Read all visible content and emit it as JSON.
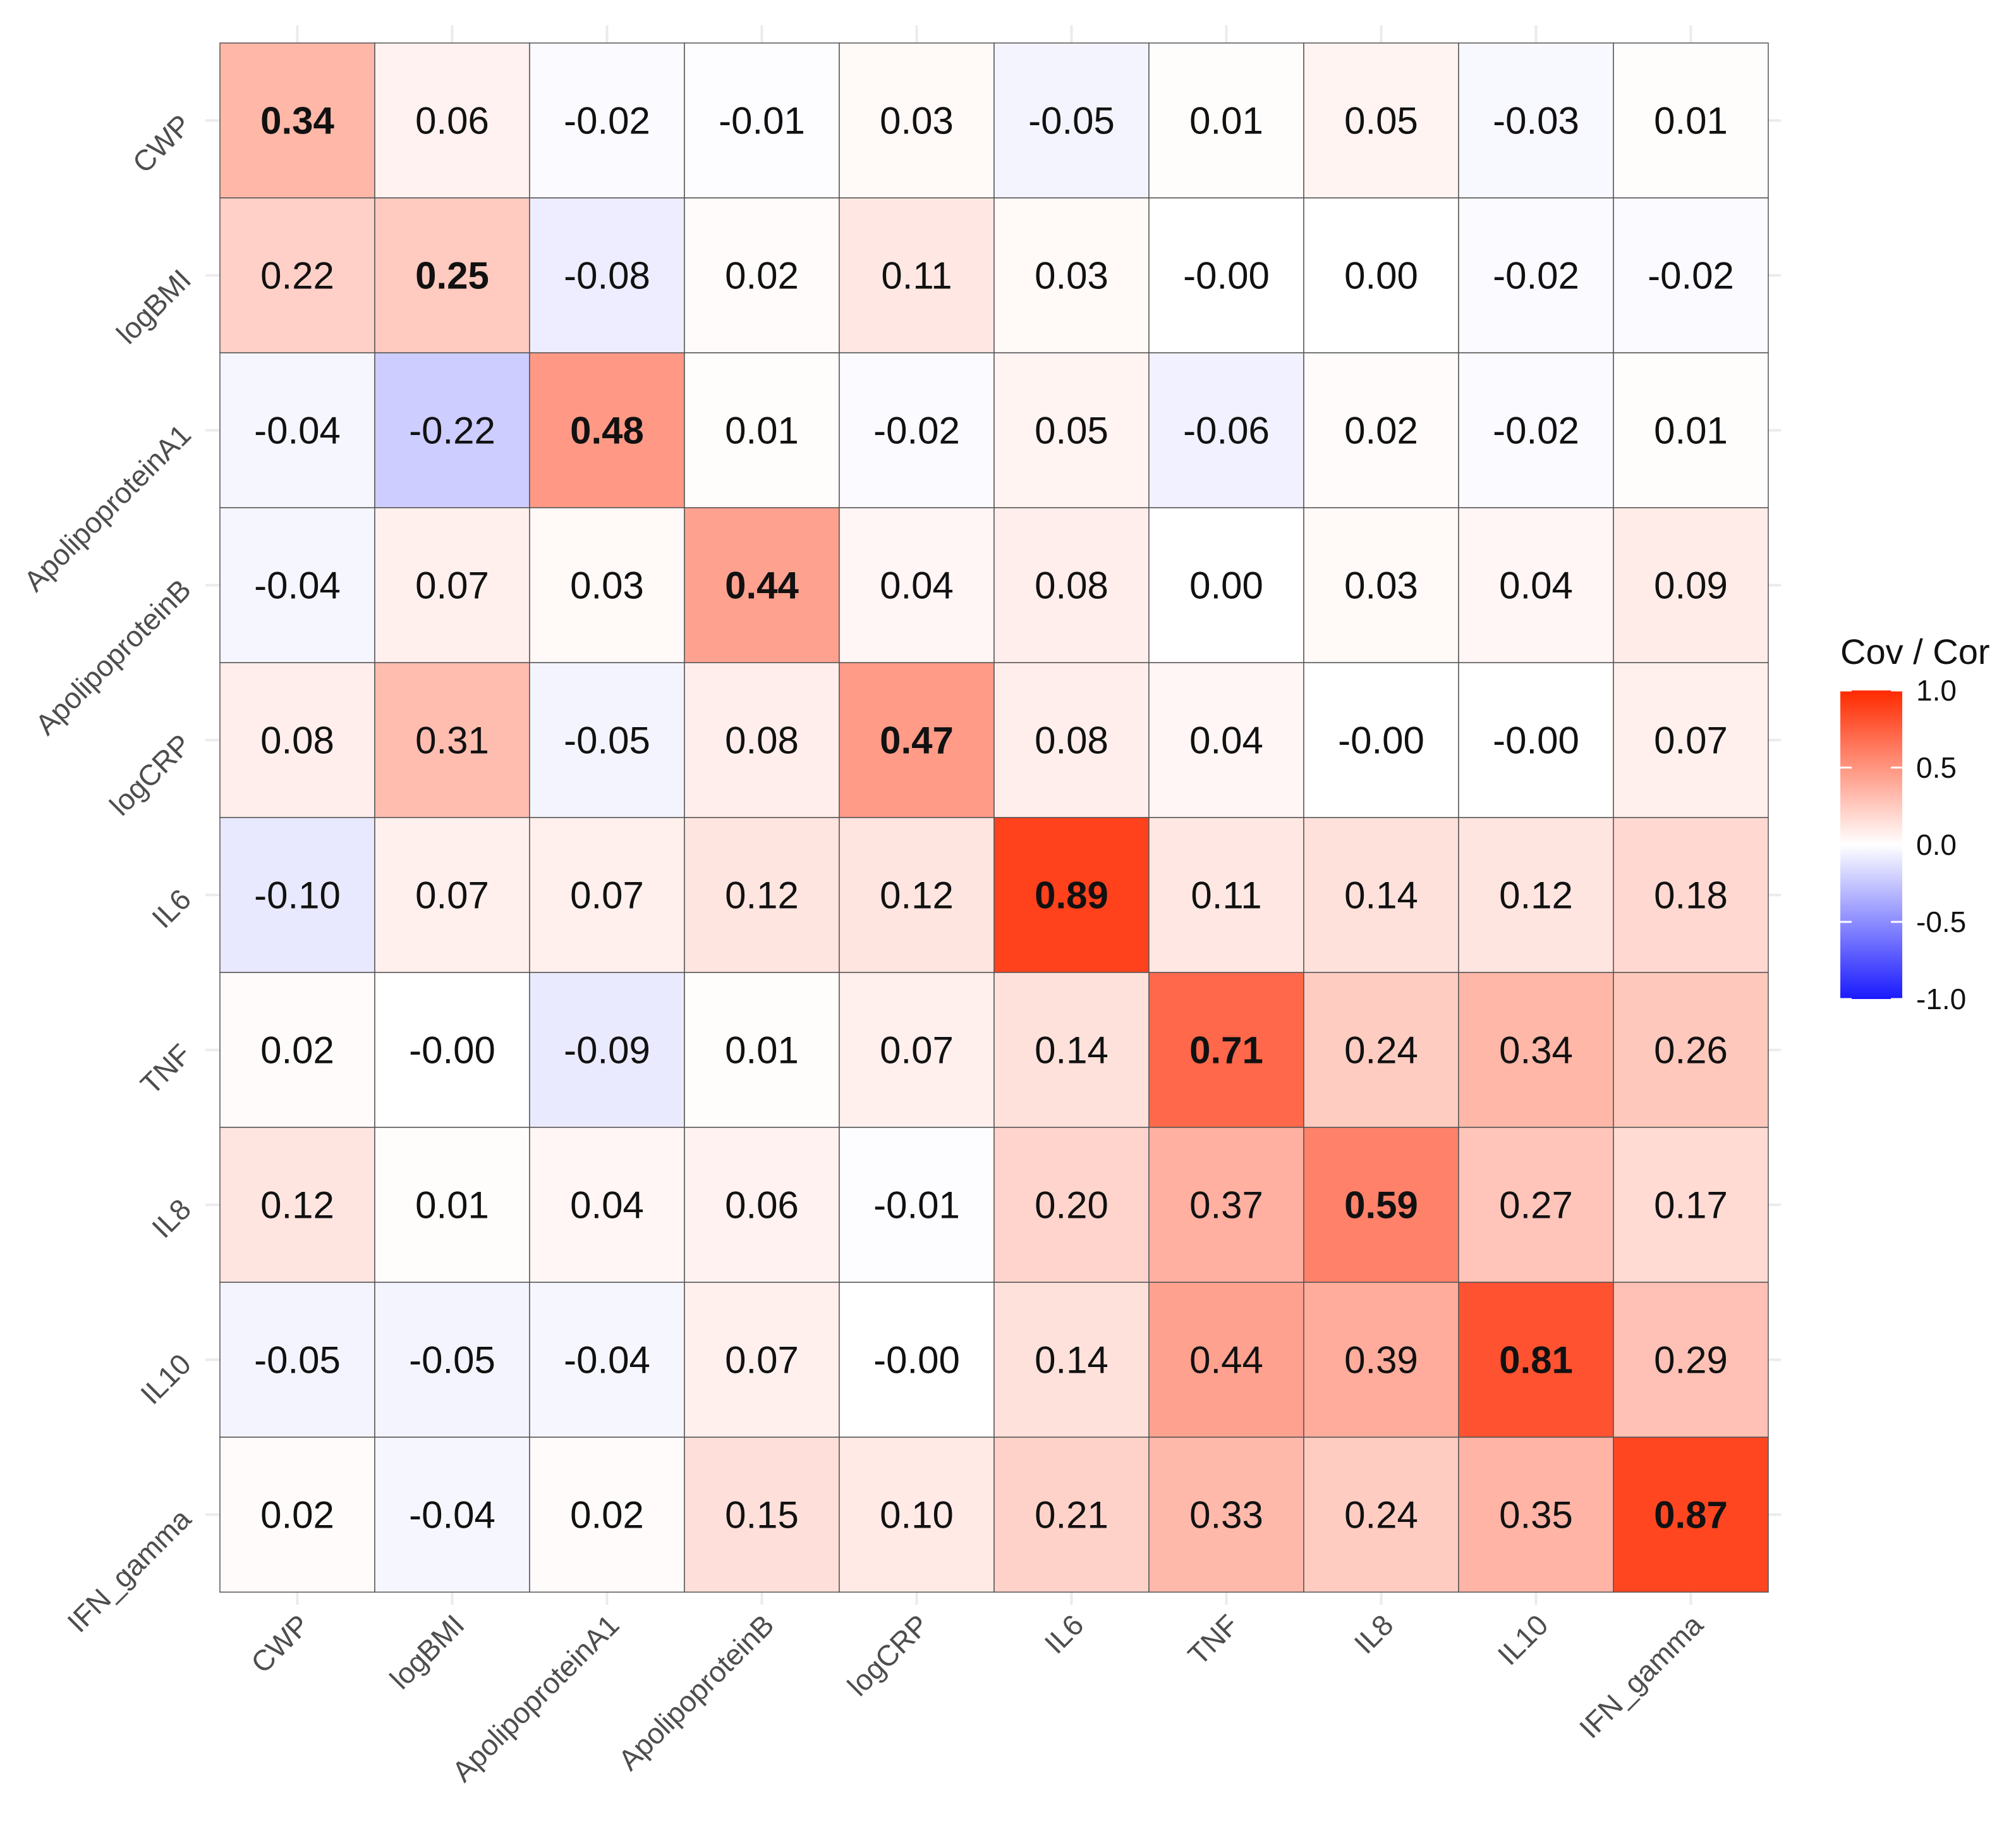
{
  "chart_data": {
    "type": "heatmap",
    "title": "",
    "xlabel": "",
    "ylabel": "",
    "labels": [
      "CWP",
      "logBMI",
      "ApolipoproteinA1",
      "ApolipoproteinB",
      "logCRP",
      "IL6",
      "TNF",
      "IL8",
      "IL10",
      "IFN_gamma"
    ],
    "values": [
      [
        "0.34",
        "0.06",
        "-0.02",
        "-0.01",
        "0.03",
        "-0.05",
        "0.01",
        "0.05",
        "-0.03",
        "0.01"
      ],
      [
        "0.22",
        "0.25",
        "-0.08",
        "0.02",
        "0.11",
        "0.03",
        "-0.00",
        "0.00",
        "-0.02",
        "-0.02"
      ],
      [
        "-0.04",
        "-0.22",
        "0.48",
        "0.01",
        "-0.02",
        "0.05",
        "-0.06",
        "0.02",
        "-0.02",
        "0.01"
      ],
      [
        "-0.04",
        "0.07",
        "0.03",
        "0.44",
        "0.04",
        "0.08",
        "0.00",
        "0.03",
        "0.04",
        "0.09"
      ],
      [
        "0.08",
        "0.31",
        "-0.05",
        "0.08",
        "0.47",
        "0.08",
        "0.04",
        "-0.00",
        "-0.00",
        "0.07"
      ],
      [
        "-0.10",
        "0.07",
        "0.07",
        "0.12",
        "0.12",
        "0.89",
        "0.11",
        "0.14",
        "0.12",
        "0.18"
      ],
      [
        "0.02",
        "-0.00",
        "-0.09",
        "0.01",
        "0.07",
        "0.14",
        "0.71",
        "0.24",
        "0.34",
        "0.26"
      ],
      [
        "0.12",
        "0.01",
        "0.04",
        "0.06",
        "-0.01",
        "0.20",
        "0.37",
        "0.59",
        "0.27",
        "0.17"
      ],
      [
        "-0.05",
        "-0.05",
        "-0.04",
        "0.07",
        "-0.00",
        "0.14",
        "0.44",
        "0.39",
        "0.81",
        "0.29"
      ],
      [
        "0.02",
        "-0.04",
        "0.02",
        "0.15",
        "0.10",
        "0.21",
        "0.33",
        "0.24",
        "0.35",
        "0.87"
      ]
    ],
    "color_scale": {
      "low": "#1a1aff",
      "mid": "#ffffff",
      "high": "#ff2a00",
      "range": [
        -1.0,
        1.0
      ]
    },
    "legend": {
      "title": "Cov / Cor",
      "ticks": [
        "1.0",
        "0.5",
        "0.0",
        "-0.5",
        "-1.0"
      ],
      "position": "right"
    },
    "grid": true
  }
}
